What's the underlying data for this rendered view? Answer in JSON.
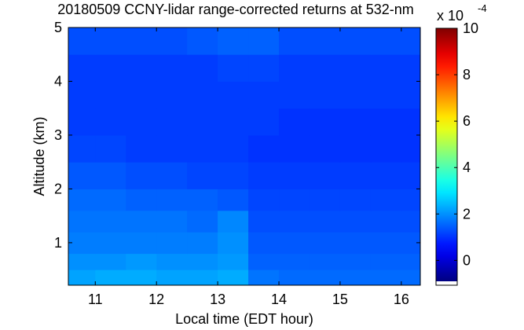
{
  "chart_data": {
    "type": "heatmap",
    "title": "20180509 CCNY-lidar range-corrected returns at 532-nm",
    "xlabel": "Local time (EDT hour)",
    "ylabel": "Altitude (km)",
    "colorbar_multiplier": "x 10",
    "colorbar_exponent": "-4",
    "colormap": "jet",
    "x_edges": [
      10.56,
      11,
      11.5,
      12,
      12.5,
      13,
      13.5,
      14,
      14.5,
      15,
      15.5,
      16,
      16.31
    ],
    "y_edges": [
      0.21,
      0.5,
      0.8,
      1.2,
      1.6,
      2.0,
      2.5,
      3,
      3.5,
      4,
      4.5,
      5
    ],
    "z": [
      [
        2.2,
        2.3,
        2.3,
        2.2,
        2.2,
        2.3,
        1.7,
        1.6,
        1.6,
        1.6,
        1.6,
        1.6
      ],
      [
        2.0,
        2.0,
        2.1,
        2.0,
        2.0,
        2.1,
        1.5,
        1.5,
        1.5,
        1.5,
        1.5,
        1.5
      ],
      [
        1.8,
        1.8,
        1.8,
        1.8,
        1.8,
        2.0,
        1.4,
        1.4,
        1.4,
        1.4,
        1.4,
        1.4
      ],
      [
        1.7,
        1.7,
        1.7,
        1.7,
        1.6,
        1.9,
        1.3,
        1.3,
        1.3,
        1.3,
        1.3,
        1.3
      ],
      [
        1.6,
        1.6,
        1.5,
        1.5,
        1.5,
        1.4,
        1.2,
        1.2,
        1.2,
        1.2,
        1.2,
        1.2
      ],
      [
        1.4,
        1.4,
        1.3,
        1.3,
        1.2,
        1.2,
        1.1,
        1.1,
        1.1,
        1.1,
        1.1,
        1.1
      ],
      [
        1.2,
        1.2,
        1.1,
        1.1,
        1.1,
        1.1,
        1.0,
        1.0,
        1.0,
        1.0,
        1.0,
        1.0
      ],
      [
        1.1,
        1.1,
        1.1,
        1.1,
        1.1,
        1.1,
        1.1,
        1.0,
        1.0,
        1.0,
        1.0,
        1.0
      ],
      [
        1.1,
        1.1,
        1.1,
        1.1,
        1.1,
        1.1,
        1.1,
        1.1,
        1.1,
        1.1,
        1.1,
        1.1
      ],
      [
        1.1,
        1.1,
        1.1,
        1.1,
        1.1,
        1.2,
        1.2,
        1.1,
        1.1,
        1.1,
        1.1,
        1.1
      ],
      [
        1.3,
        1.3,
        1.3,
        1.3,
        1.4,
        1.5,
        1.5,
        1.3,
        1.3,
        1.3,
        1.3,
        1.3
      ]
    ],
    "xlim": [
      10.56,
      16.31
    ],
    "ylim": [
      0.21,
      5
    ],
    "xticks": [
      11,
      12,
      13,
      14,
      15,
      16
    ],
    "yticks": [
      1,
      2,
      3,
      4,
      5
    ],
    "clim": [
      -0.9,
      10
    ],
    "cticks": [
      0,
      2,
      4,
      6,
      8,
      10
    ]
  }
}
